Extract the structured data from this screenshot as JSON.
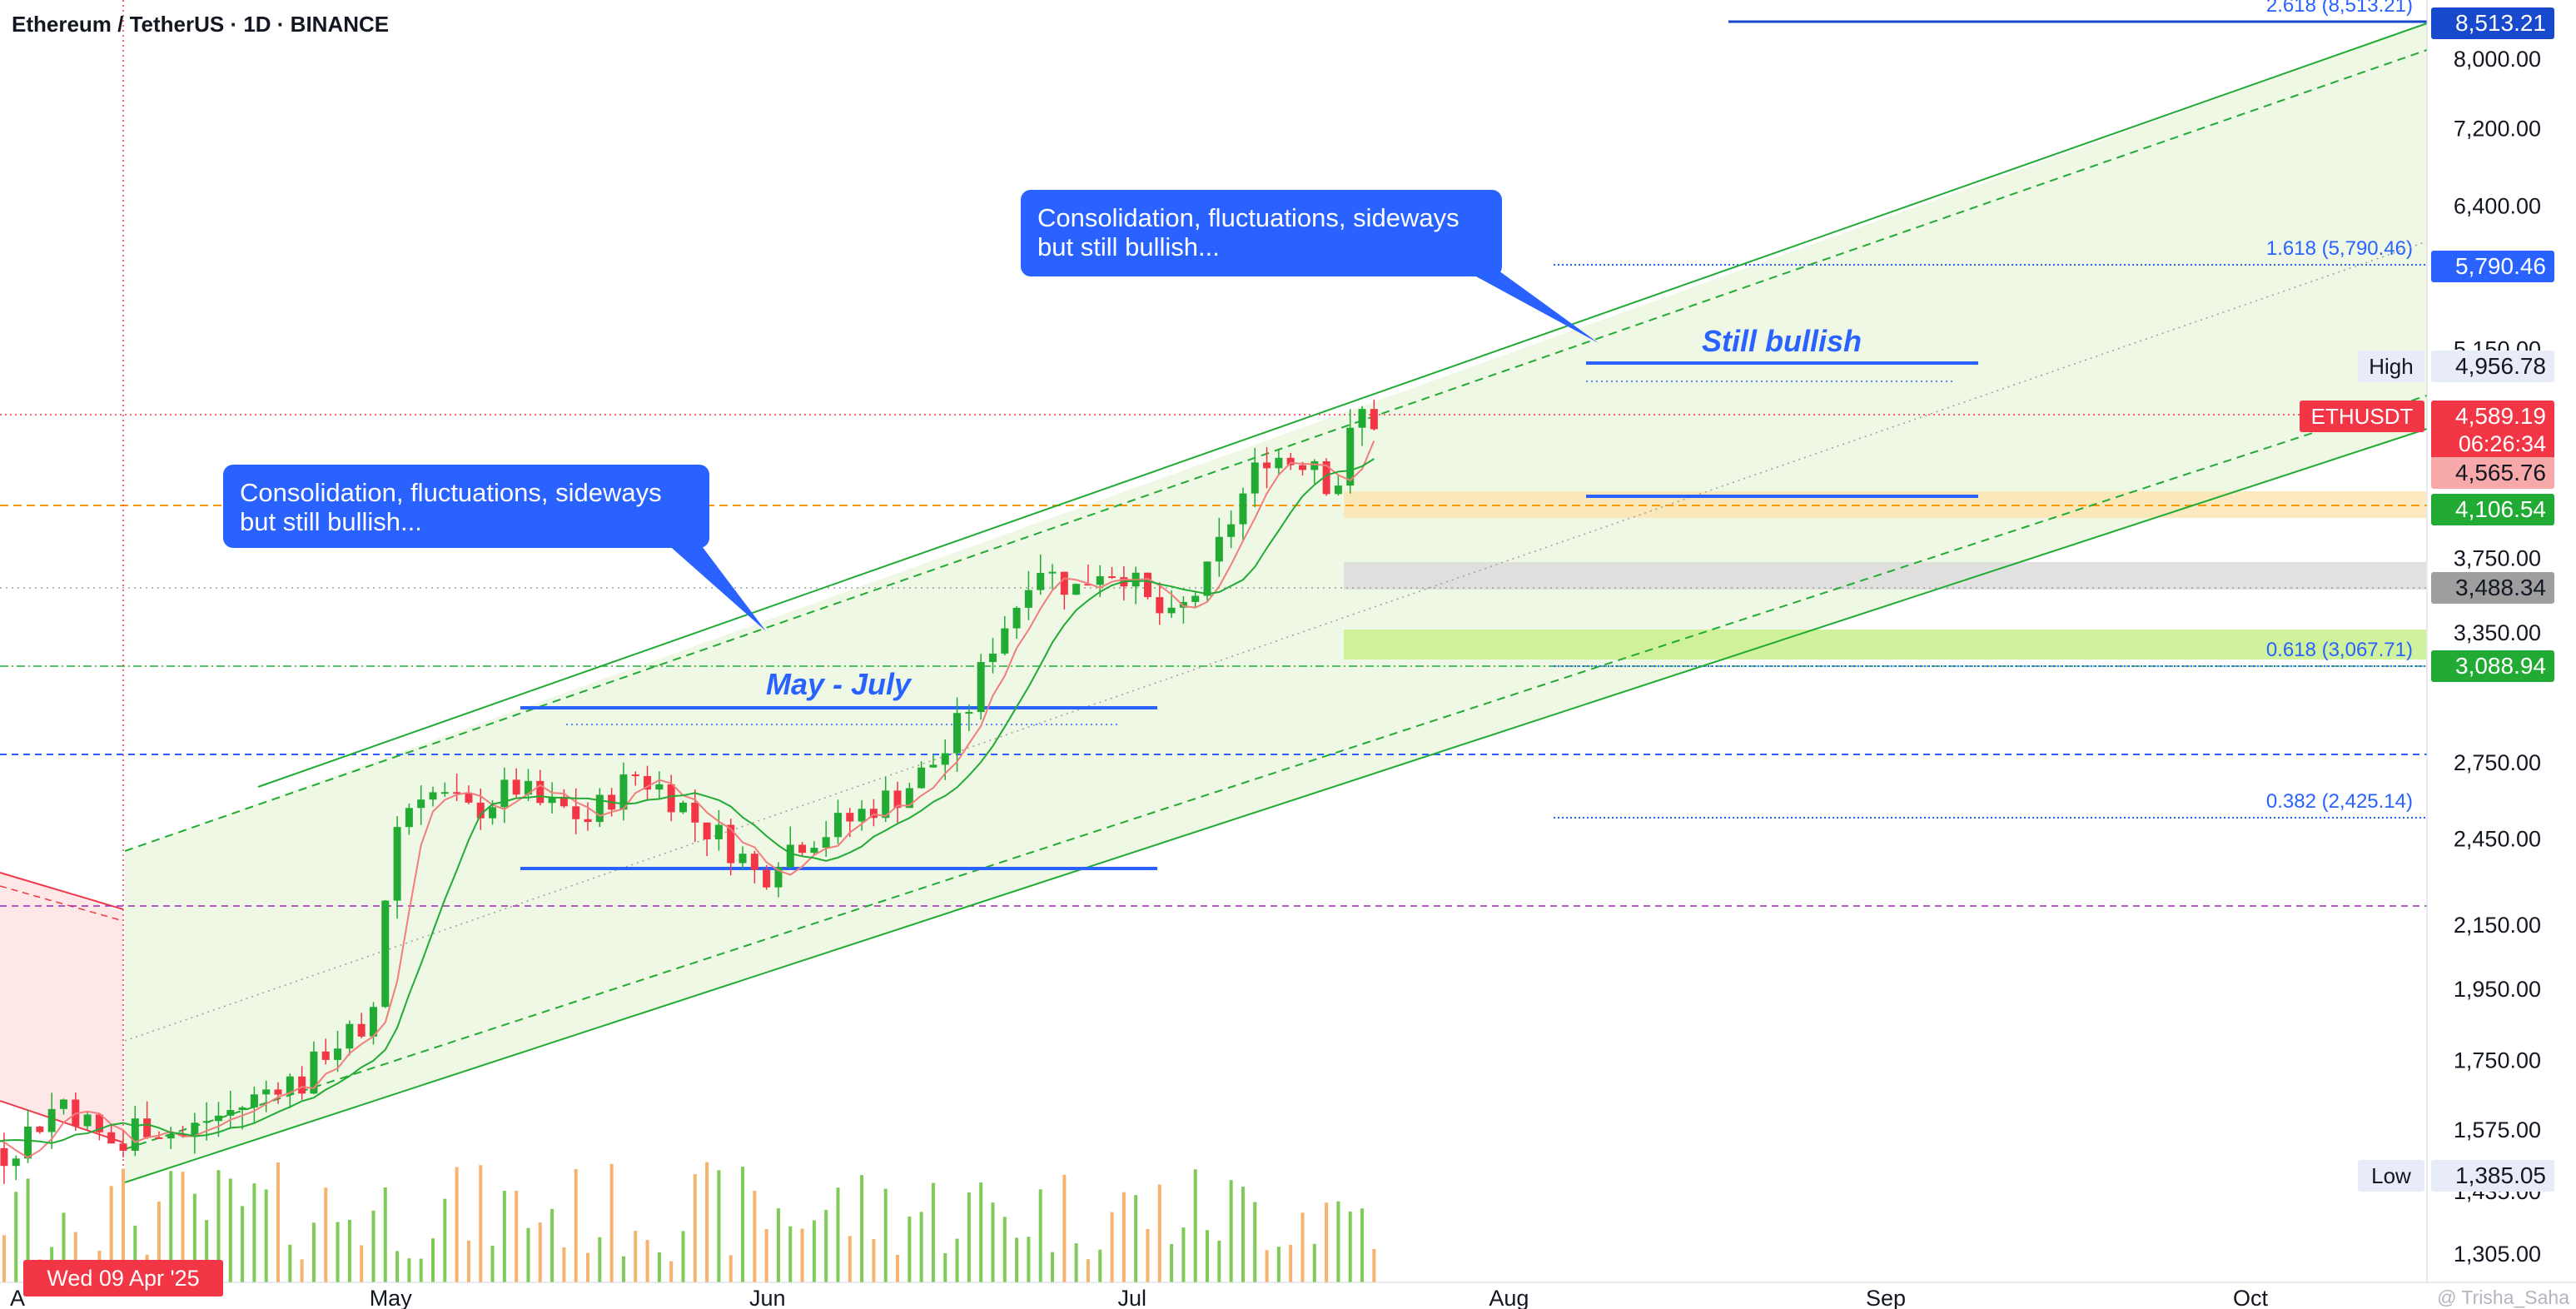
{
  "header": {
    "title": "Ethereum / TetherUS · 1D · BINANCE"
  },
  "callouts": {
    "left": {
      "line1": "Consolidation, fluctuations, sideways",
      "line2": "but still bullish..."
    },
    "right": {
      "line1": "Consolidation, fluctuations, sideways",
      "line2": "but still bullish..."
    }
  },
  "annotations": {
    "may_july": "May - July",
    "still_bullish": "Still bullish"
  },
  "colors": {
    "bull": "#089981",
    "bear": "#f23645",
    "accent": "#2962ff",
    "channel": "#22ab34",
    "vol_up": "#7ecb58",
    "vol_down": "#f7b26d"
  },
  "chart_data": {
    "type": "candlestick",
    "symbol": "ETHUSDT",
    "exchange": "BINANCE",
    "interval": "1D",
    "scale": "log",
    "x_ticks": [
      "May",
      "Jun",
      "Jul",
      "Aug",
      "Sep",
      "Oct"
    ],
    "crosshair_date_label": "Wed 09 Apr '25",
    "y_ticks": [
      "8,000.00",
      "7,200.00",
      "6,400.00",
      "5,150.00",
      "3,750.00",
      "3,350.00",
      "2,750.00",
      "2,450.00",
      "2,150.00",
      "1,950.00",
      "1,750.00",
      "1,575.00",
      "1,435.00",
      "1,305.00"
    ],
    "y_tick_values": [
      8000,
      7200,
      6400,
      5150,
      3750,
      3350,
      2750,
      2450,
      2150,
      1950,
      1750,
      1575,
      1435,
      1305
    ],
    "y_range": [
      1250,
      8750
    ],
    "price_labels": [
      {
        "text": "8,513.21",
        "value": 8513.21,
        "bg": "#1848cc",
        "fg": "#ffffff"
      },
      {
        "text": "5,790.46",
        "value": 5790.46,
        "bg": "#2962ff",
        "fg": "#ffffff"
      },
      {
        "text": "4,956.78",
        "value": 4956.78,
        "bg": "#e8ecf9",
        "fg": "#131722",
        "tag": "High"
      },
      {
        "text": "4,589.19",
        "value": 4589.19,
        "bg": "#f23645",
        "fg": "#ffffff",
        "tag": "ETHUSDT",
        "sub": "06:26:34"
      },
      {
        "text": "4,565.76",
        "value": 4565.76,
        "bg": "#f7a9a9",
        "fg": "#131722"
      },
      {
        "text": "4,106.54",
        "value": 4106.54,
        "bg": "#22ab34",
        "fg": "#ffffff"
      },
      {
        "text": "3,488.34",
        "value": 3488.34,
        "bg": "#9e9e9e",
        "fg": "#131722"
      },
      {
        "text": "3,088.94",
        "value": 3088.94,
        "bg": "#22ab34",
        "fg": "#ffffff"
      },
      {
        "text": "1,385.05",
        "value": 1385.05,
        "bg": "#e8ecf9",
        "fg": "#131722",
        "tag": "Low"
      }
    ],
    "fib_levels": [
      {
        "text": "2.618 (8,513.21)",
        "value": 8513.21
      },
      {
        "text": "1.618 (5,790.46)",
        "value": 5790.46
      },
      {
        "text": "0.618 (3,067.71)",
        "value": 3067.71
      },
      {
        "text": "0.382 (2,425.14)",
        "value": 2425.14
      }
    ],
    "last_price": 4589.19,
    "high": 4956.78,
    "low": 1385.05,
    "watermark": "@ Trisha_Saha"
  }
}
